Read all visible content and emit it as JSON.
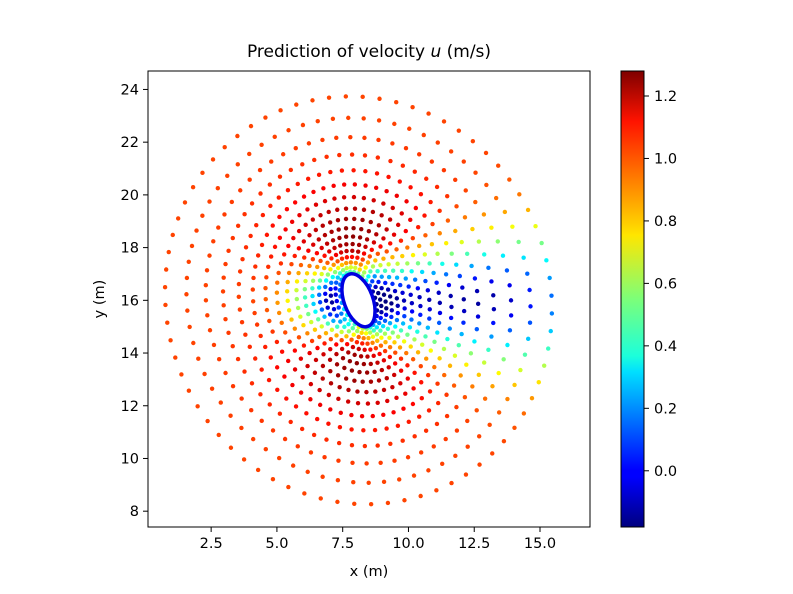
{
  "chart_data": {
    "type": "scatter",
    "title": "Prediction of velocity u (m/s)",
    "title_parts": [
      "Prediction of velocity ",
      "u",
      " (m/s)"
    ],
    "xlabel": "x (m)",
    "ylabel": "y (m)",
    "xlim": [
      0.1,
      16.9
    ],
    "ylim": [
      7.4,
      24.7
    ],
    "xticks": [
      2.5,
      5.0,
      7.5,
      10.0,
      12.5,
      15.0
    ],
    "xtick_labels": [
      "2.5",
      "5.0",
      "7.5",
      "10.0",
      "12.5",
      "15.0"
    ],
    "yticks": [
      8,
      10,
      12,
      14,
      16,
      18,
      20,
      22,
      24
    ],
    "ytick_labels": [
      "8",
      "10",
      "12",
      "14",
      "16",
      "18",
      "20",
      "22",
      "24"
    ],
    "grid": false,
    "colormap": "jet",
    "colorbar": {
      "vmin": -0.18,
      "vmax": 1.28,
      "ticks": [
        0.0,
        0.2,
        0.4,
        0.6,
        0.8,
        1.0,
        1.2
      ],
      "tick_labels": [
        "0.0",
        "0.2",
        "0.4",
        "0.6",
        "0.8",
        "1.0",
        "1.2"
      ]
    },
    "obstacle": {
      "shape": "ellipse",
      "center": [
        8.1,
        16.0
      ],
      "semi_axes": [
        0.55,
        1.05
      ],
      "rotation_deg": 20
    },
    "field": {
      "free_stream_u": 1.0,
      "peak_u": 1.27,
      "wake_min_u": -0.15,
      "domain_radius": 8.0
    }
  }
}
